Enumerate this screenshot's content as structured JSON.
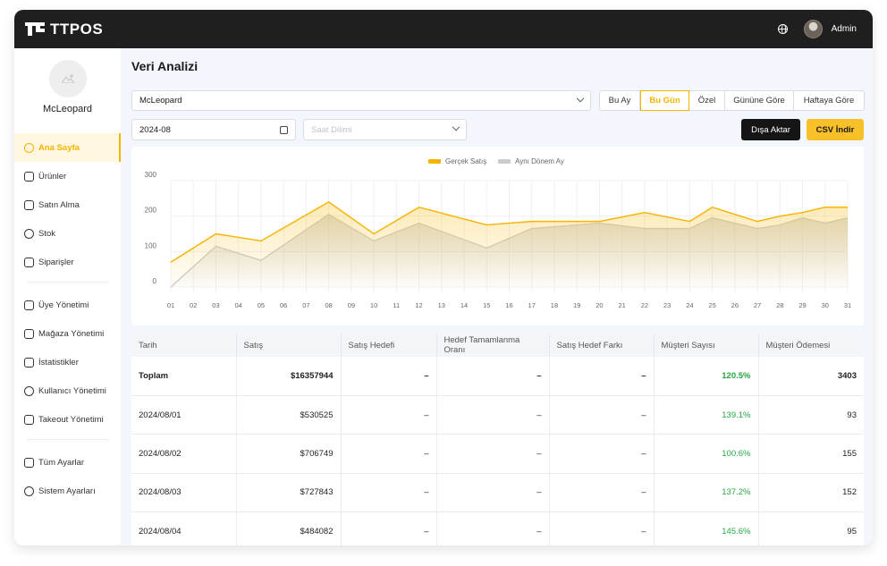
{
  "app": {
    "brand": "TTPOS",
    "user": "Admin"
  },
  "sidebar": {
    "store_name": "McLeopard",
    "items": [
      {
        "label": "Ana Sayfa",
        "icon": "dashboard-icon",
        "active": true
      },
      {
        "label": "Ürünler",
        "icon": "box-icon"
      },
      {
        "label": "Satın Alma",
        "icon": "cart-icon"
      },
      {
        "label": "Stok",
        "icon": "stock-icon"
      },
      {
        "label": "Siparişler",
        "icon": "clipboard-icon"
      },
      {
        "label": "Üye Yönetimi",
        "icon": "member-icon"
      },
      {
        "label": "Mağaza Yönetimi",
        "icon": "store-icon"
      },
      {
        "label": "İstatistikler",
        "icon": "stats-icon"
      },
      {
        "label": "Kullanıcı Yönetimi",
        "icon": "users-icon"
      },
      {
        "label": "Takeout Yönetimi",
        "icon": "takeout-icon"
      },
      {
        "label": "Tüm Ayarlar",
        "icon": "settings-grid-icon"
      },
      {
        "label": "Sistem Ayarları",
        "icon": "gear-icon"
      }
    ]
  },
  "main": {
    "title": "Veri Analizi",
    "store_select": "McLeopard",
    "date_value": "2024-08",
    "timezone_placeholder": "Saat Dilimi",
    "periods": [
      "Bu Ay",
      "Bu Gün",
      "Özel",
      "Gününe Göre",
      "Haftaya Göre"
    ],
    "active_period": "Bu Gün",
    "export_label": "Dışa Aktar",
    "csv_label": "CSV İndir"
  },
  "colors": {
    "accent": "#f5b400",
    "dark": "#1f1f1f",
    "positive": "#28a745",
    "compare": "#cccccc"
  },
  "chart_data": {
    "type": "area",
    "categories": [
      "01",
      "02",
      "03",
      "04",
      "05",
      "06",
      "07",
      "08",
      "09",
      "10",
      "11",
      "12",
      "13",
      "14",
      "15",
      "16",
      "17",
      "18",
      "19",
      "20",
      "21",
      "22",
      "23",
      "24",
      "25",
      "26",
      "27",
      "28",
      "29",
      "30",
      "31"
    ],
    "series": [
      {
        "name": "Gerçek Satış",
        "values": [
          70,
          null,
          150,
          null,
          130,
          null,
          null,
          240,
          null,
          150,
          null,
          225,
          null,
          null,
          175,
          null,
          185,
          null,
          null,
          185,
          null,
          210,
          null,
          185,
          225,
          null,
          185,
          200,
          210,
          225,
          225
        ]
      },
      {
        "name": "Aynı Dönem Ay",
        "values": [
          0,
          null,
          115,
          null,
          75,
          null,
          null,
          205,
          null,
          130,
          null,
          180,
          null,
          null,
          110,
          null,
          165,
          null,
          null,
          180,
          null,
          165,
          null,
          165,
          195,
          null,
          165,
          175,
          195,
          180,
          195
        ]
      }
    ],
    "title": "",
    "xlabel": "",
    "ylabel": "",
    "yticks": [
      0,
      100,
      200,
      300
    ],
    "ylim": [
      0,
      300
    ],
    "legend": "top-center",
    "grid": true
  },
  "table": {
    "headers": [
      "Tarih",
      "Satış",
      "Satış Hedefi",
      "Hedef Tamamlanma Oranı",
      "Satış Hedef Farkı",
      "Müşteri Sayısı",
      "Müşteri Ödemesi"
    ],
    "rows": [
      [
        "Toplam",
        "$16357944",
        "–",
        "–",
        "–",
        "120.5%",
        "3403"
      ],
      [
        "2024/08/01",
        "$530525",
        "–",
        "–",
        "–",
        "139.1%",
        "93"
      ],
      [
        "2024/08/02",
        "$706749",
        "–",
        "–",
        "–",
        "100.6%",
        "155"
      ],
      [
        "2024/08/03",
        "$727843",
        "–",
        "–",
        "–",
        "137.2%",
        "152"
      ],
      [
        "2024/08/04",
        "$484082",
        "–",
        "–",
        "–",
        "145.6%",
        "95"
      ]
    ]
  }
}
